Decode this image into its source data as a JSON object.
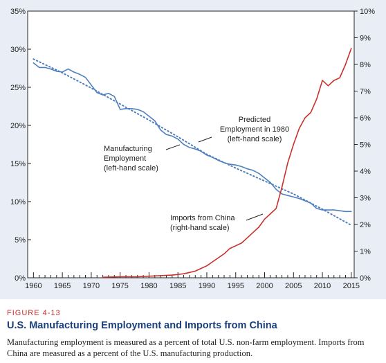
{
  "caption": {
    "figure_number": "FIGURE 4-13",
    "title": "U.S. Manufacturing Employment and Imports from China",
    "description": "Manufacturing employment is measured as a percent of total U.S. non-farm employment. Imports from China are measured as a percent of the U.S. manufacturing production."
  },
  "colors": {
    "background": "#e9edf5",
    "employment": "#4f7fbf",
    "imports": "#c8302a",
    "caption_accent": "#c8302a",
    "title_color": "#1b3f7a"
  },
  "chart_data": {
    "type": "line",
    "x_ticks": [
      1960,
      1965,
      1970,
      1975,
      1980,
      1985,
      1990,
      1995,
      2000,
      2005,
      2010,
      2015
    ],
    "xlim": [
      1959,
      2015.5
    ],
    "ylim_left": [
      0,
      35
    ],
    "ylim_right": [
      0,
      10
    ],
    "left_ticks": [
      "0%",
      "5%",
      "10%",
      "15%",
      "20%",
      "25%",
      "30%",
      "35%"
    ],
    "right_ticks": [
      "0%",
      "1%",
      "2%",
      "3%",
      "4%",
      "5%",
      "6%",
      "7%",
      "8%",
      "9%",
      "10%"
    ],
    "grid": false,
    "annotations": {
      "employment": [
        "Manufacturing",
        "Employment",
        "(left-hand scale)"
      ],
      "predicted": [
        "Predicted",
        "Employment in 1980",
        "(left-hand scale)"
      ],
      "imports": [
        "Imports from China",
        "(right-hand scale)"
      ]
    },
    "series": [
      {
        "axis": "left",
        "style": "solid",
        "x": [
          1960,
          1961,
          1962,
          1963,
          1964,
          1965,
          1966,
          1967,
          1968,
          1969,
          1970,
          1971,
          1972,
          1973,
          1974,
          1975,
          1976,
          1977,
          1978,
          1979,
          1980,
          1981,
          1982,
          1983,
          1984,
          1985,
          1986,
          1987,
          1988,
          1989,
          1990,
          1991,
          1992,
          1993,
          1994,
          1995,
          1996,
          1997,
          1998,
          1999,
          2000,
          2001,
          2002,
          2003,
          2004,
          2005,
          2006,
          2007,
          2008,
          2009,
          2010,
          2011,
          2012,
          2013,
          2014,
          2015
        ],
        "values": [
          28.2,
          27.6,
          27.6,
          27.4,
          27.1,
          27.0,
          27.4,
          27.0,
          26.7,
          26.3,
          25.3,
          24.3,
          24.0,
          24.2,
          23.8,
          22.1,
          22.2,
          22.2,
          22.1,
          21.8,
          21.2,
          20.6,
          19.4,
          18.8,
          18.6,
          18.2,
          17.5,
          17.1,
          16.9,
          16.6,
          16.1,
          15.8,
          15.4,
          15.1,
          14.9,
          14.8,
          14.6,
          14.3,
          14.1,
          13.7,
          13.1,
          12.5,
          11.6,
          11.0,
          10.8,
          10.6,
          10.4,
          10.1,
          9.8,
          9.1,
          8.9,
          8.9,
          8.9,
          8.8,
          8.7,
          8.7
        ]
      },
      {
        "axis": "left",
        "style": "dotted",
        "x": [
          1960,
          1965,
          1970,
          1975,
          1980,
          1985,
          1990,
          1995,
          2000,
          2005,
          2010,
          2015
        ],
        "values": [
          28.7,
          26.9,
          24.9,
          22.8,
          20.7,
          18.5,
          16.2,
          14.4,
          12.7,
          11.0,
          9.0,
          6.9
        ]
      },
      {
        "axis": "right",
        "style": "solid",
        "x": [
          1972,
          1975,
          1978,
          1980,
          1982,
          1984,
          1986,
          1987,
          1988,
          1989,
          1990,
          1991,
          1992,
          1993,
          1994,
          1995,
          1996,
          1997,
          1998,
          1999,
          2000,
          2001,
          2002,
          2003,
          2004,
          2005,
          2006,
          2007,
          2008,
          2009,
          2010,
          2011,
          2012,
          2013,
          2014,
          2015
        ],
        "values": [
          0.02,
          0.04,
          0.04,
          0.06,
          0.08,
          0.1,
          0.15,
          0.2,
          0.25,
          0.35,
          0.45,
          0.6,
          0.75,
          0.9,
          1.1,
          1.2,
          1.3,
          1.5,
          1.7,
          1.9,
          2.2,
          2.4,
          2.6,
          3.4,
          4.3,
          5.0,
          5.6,
          6.0,
          6.2,
          6.7,
          7.4,
          7.2,
          7.4,
          7.5,
          8.0,
          8.6
        ]
      }
    ]
  }
}
